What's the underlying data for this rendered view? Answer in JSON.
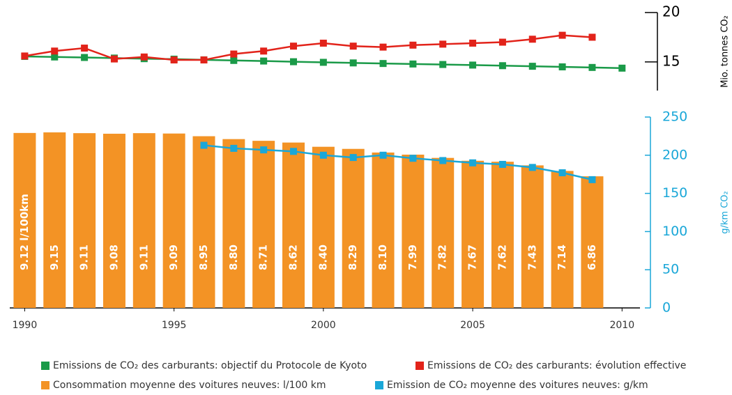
{
  "chart_data": [
    {
      "type": "line",
      "y_axis_label": "Mio. tonnes CO₂",
      "x": [
        1990,
        1991,
        1992,
        1993,
        1994,
        1995,
        1996,
        1997,
        1998,
        1999,
        2000,
        2001,
        2002,
        2003,
        2004,
        2005,
        2006,
        2007,
        2008,
        2009,
        2010
      ],
      "xlim": [
        1989.5,
        2010.6
      ],
      "ylim": [
        12.1,
        20
      ],
      "yticks": [
        15,
        20
      ],
      "series": [
        {
          "name": "Emissions de CO₂ des carburants: objectif du Protocole de Kyoto",
          "color": "#1a9a48",
          "values": [
            15.56,
            15.5,
            15.45,
            15.39,
            15.33,
            15.28,
            15.21,
            15.15,
            15.09,
            15.02,
            14.96,
            14.9,
            14.84,
            14.79,
            14.74,
            14.68,
            14.62,
            14.56,
            14.5,
            14.44,
            14.37
          ]
        },
        {
          "name": "Emissions de CO₂ des carburants: évolution effective",
          "color": "#e2231a",
          "values": [
            15.6,
            16.1,
            16.4,
            15.3,
            15.5,
            15.2,
            15.2,
            15.8,
            16.1,
            16.6,
            16.9,
            16.6,
            16.5,
            16.7,
            16.8,
            16.9,
            17.0,
            17.3,
            17.7,
            17.5,
            null
          ]
        }
      ]
    },
    {
      "type": "bar",
      "y_axis_label": "g/km CO₂",
      "x": [
        1990,
        1991,
        1992,
        1993,
        1994,
        1995,
        1996,
        1997,
        1998,
        1999,
        2000,
        2001,
        2002,
        2003,
        2004,
        2005,
        2006,
        2007,
        2008,
        2009
      ],
      "xlim": [
        1989.5,
        2010.6
      ],
      "xticks": [
        1990,
        1995,
        2000,
        2005,
        2010
      ],
      "ylim": [
        0,
        250
      ],
      "yticks": [
        0,
        50,
        100,
        150,
        200,
        250
      ],
      "bar_ylim": [
        0,
        9.95
      ],
      "series": [
        {
          "name": "Consommation moyenne des voitures neuves: l/100 km",
          "color": "#f39325",
          "type": "bar",
          "values": [
            9.12,
            9.15,
            9.11,
            9.08,
            9.11,
            9.09,
            8.95,
            8.8,
            8.71,
            8.62,
            8.4,
            8.29,
            8.1,
            7.99,
            7.82,
            7.67,
            7.62,
            7.43,
            7.14,
            6.86
          ],
          "value_labels": [
            "9.12 l/100km",
            "9.15",
            "9.11",
            "9.08",
            "9.11",
            "9.09",
            "8.95",
            "8.80",
            "8.71",
            "8.62",
            "8.40",
            "8.29",
            "8.10",
            "7.99",
            "7.82",
            "7.67",
            "7.62",
            "7.43",
            "7.14",
            "6.86"
          ]
        },
        {
          "name": "Emission de CO₂ moyenne des voitures neuves: g/km",
          "color": "#1aa7d8",
          "type": "line",
          "values": [
            null,
            null,
            null,
            null,
            null,
            null,
            213,
            209,
            207,
            205,
            200,
            197,
            200,
            196,
            193,
            190,
            188,
            184,
            177,
            168
          ]
        }
      ]
    }
  ]
}
